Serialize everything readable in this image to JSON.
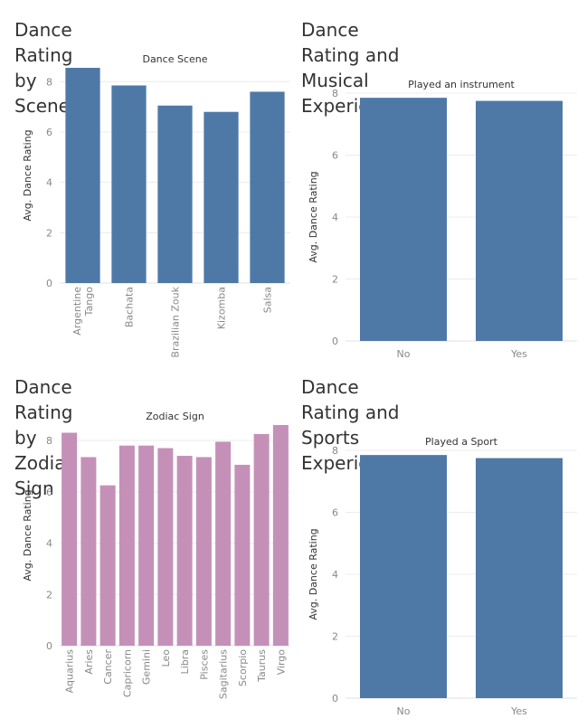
{
  "charts": [
    {
      "id": "scene",
      "title": "Dance Rating by Scene",
      "header": "Dance Scene",
      "ylabel": "Avg. Dance Rating",
      "color": "#4e79a7"
    },
    {
      "id": "musical",
      "title": "Dance Rating and Musical\nExperience",
      "header": "Played an instrument",
      "ylabel": "Avg. Dance Rating",
      "color": "#4e79a7"
    },
    {
      "id": "zodiac",
      "title": "Dance Rating by Zodiac Sign",
      "header": "Zodiac Sign",
      "ylabel": "Avg. Dance Rating",
      "color": "#c490b8"
    },
    {
      "id": "sports",
      "title": "Dance Rating and Sports\nExperience",
      "header": "Played a Sport",
      "ylabel": "Avg. Dance Rating",
      "color": "#4e79a7"
    }
  ],
  "chart_data": [
    {
      "type": "bar",
      "title": "Dance Rating by Scene",
      "xlabel": "Dance Scene",
      "ylabel": "Avg. Dance Rating",
      "categories": [
        "Argentine Tango",
        "Bachata",
        "Brazilian Zouk",
        "Kizomba",
        "Salsa"
      ],
      "values": [
        8.55,
        7.85,
        7.05,
        6.8,
        7.6
      ],
      "yticks": [
        0,
        2,
        4,
        6,
        8
      ],
      "ylim": [
        0,
        8.55
      ],
      "color": "#4e79a7",
      "grid": true
    },
    {
      "type": "bar",
      "title": "Dance Rating and Musical Experience",
      "xlabel": "Played an instrument",
      "ylabel": "Avg. Dance Rating",
      "categories": [
        "No",
        "Yes"
      ],
      "values": [
        7.85,
        7.75
      ],
      "yticks": [
        0,
        2,
        4,
        6,
        8
      ],
      "ylim": [
        0,
        8.0
      ],
      "color": "#4e79a7",
      "grid": true
    },
    {
      "type": "bar",
      "title": "Dance Rating by Zodiac Sign",
      "xlabel": "Zodiac Sign",
      "ylabel": "Avg. Dance Rating",
      "categories": [
        "Aquarius",
        "Aries",
        "Cancer",
        "Capricorn",
        "Gemini",
        "Leo",
        "Libra",
        "Pisces",
        "Sagitarius",
        "Scorpio",
        "Taurus",
        "Virgo"
      ],
      "values": [
        8.3,
        7.35,
        6.25,
        7.8,
        7.8,
        7.7,
        7.4,
        7.35,
        7.95,
        7.05,
        8.25,
        8.6
      ],
      "yticks": [
        0,
        2,
        4,
        6,
        8
      ],
      "ylim": [
        0,
        8.6
      ],
      "color": "#c490b8",
      "grid": true
    },
    {
      "type": "bar",
      "title": "Dance Rating and Sports Experience",
      "xlabel": "Played a Sport",
      "ylabel": "Avg. Dance Rating",
      "categories": [
        "No",
        "Yes"
      ],
      "values": [
        7.85,
        7.75
      ],
      "yticks": [
        0,
        2,
        4,
        6,
        8
      ],
      "ylim": [
        0,
        8.0
      ],
      "color": "#4e79a7",
      "grid": true
    }
  ]
}
